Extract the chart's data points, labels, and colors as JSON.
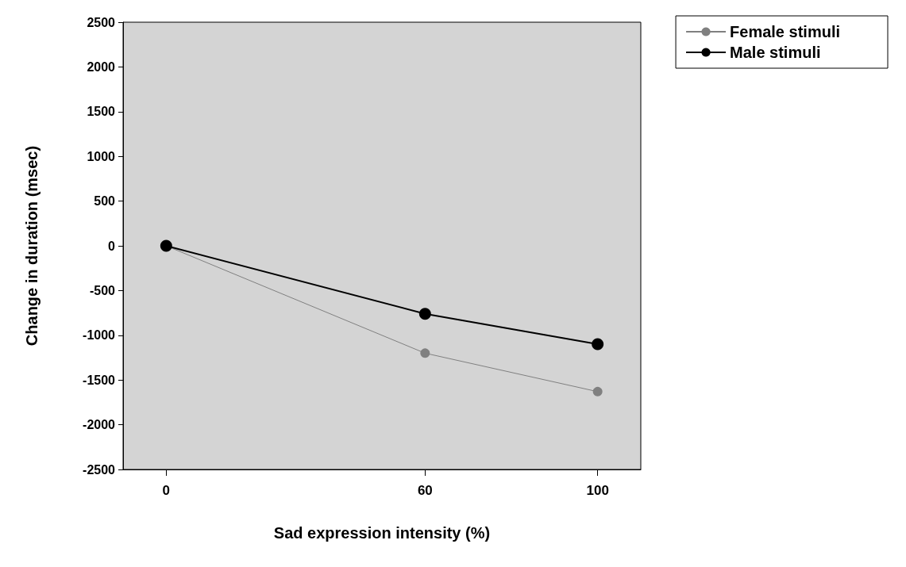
{
  "chart_data": {
    "type": "line",
    "xlabel": "Sad expression intensity (%)",
    "ylabel": "Change in duration (msec)",
    "x": [
      0,
      60,
      100
    ],
    "series": [
      {
        "name": "Female stimuli",
        "color": "#808080",
        "values": [
          0,
          -1200,
          -1630
        ]
      },
      {
        "name": "Male stimuli",
        "color": "#000000",
        "values": [
          0,
          -760,
          -1100
        ]
      }
    ],
    "xlim": [
      -10,
      110
    ],
    "xticks": [
      0,
      60,
      100
    ],
    "ylim": [
      -2500,
      2500
    ],
    "yticks": [
      -2500,
      -2000,
      -1500,
      -1000,
      -500,
      0,
      500,
      1000,
      1500,
      2000,
      2500
    ],
    "grid": false,
    "legend": "top right",
    "marker": "circle",
    "line_style": "solid"
  }
}
